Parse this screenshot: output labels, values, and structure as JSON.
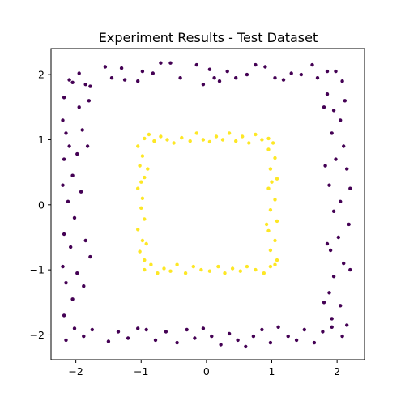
{
  "chart_data": {
    "type": "scatter",
    "title": "Experiment Results - Test Dataset",
    "xlabel": "",
    "ylabel": "",
    "xlim": [
      -2.38,
      2.42
    ],
    "ylim": [
      -2.38,
      2.4
    ],
    "xticks": [
      -2,
      -1,
      0,
      1,
      2
    ],
    "yticks": [
      -2,
      -1,
      0,
      1,
      2
    ],
    "xtick_labels": [
      "−2",
      "−1",
      "0",
      "1",
      "2"
    ],
    "ytick_labels": [
      "−2",
      "−1",
      "0",
      "1",
      "2"
    ],
    "grid": false,
    "series": [
      {
        "color": "#440154",
        "points": [
          [
            -2.1,
            1.92
          ],
          [
            -2.05,
            1.88
          ],
          [
            -1.95,
            2.02
          ],
          [
            -1.85,
            1.85
          ],
          [
            -1.78,
            1.82
          ],
          [
            -1.55,
            2.12
          ],
          [
            -1.45,
            1.95
          ],
          [
            -1.3,
            2.1
          ],
          [
            -1.25,
            1.92
          ],
          [
            -1.05,
            1.9
          ],
          [
            -0.98,
            2.05
          ],
          [
            -0.82,
            2.02
          ],
          [
            -0.7,
            2.18
          ],
          [
            -0.55,
            2.18
          ],
          [
            -0.4,
            1.95
          ],
          [
            -0.15,
            2.15
          ],
          [
            -0.05,
            1.85
          ],
          [
            0.05,
            2.08
          ],
          [
            0.12,
            1.95
          ],
          [
            0.2,
            1.9
          ],
          [
            0.32,
            2.05
          ],
          [
            0.45,
            1.95
          ],
          [
            0.62,
            2.0
          ],
          [
            0.75,
            2.15
          ],
          [
            0.9,
            2.12
          ],
          [
            1.05,
            1.95
          ],
          [
            1.18,
            1.92
          ],
          [
            1.3,
            2.02
          ],
          [
            1.45,
            2.0
          ],
          [
            1.62,
            2.15
          ],
          [
            1.7,
            1.95
          ],
          [
            1.85,
            2.05
          ],
          [
            1.98,
            2.05
          ],
          [
            2.08,
            1.9
          ],
          [
            -2.15,
            -2.08
          ],
          [
            -2.02,
            -1.9
          ],
          [
            -1.88,
            -2.02
          ],
          [
            -1.75,
            -1.92
          ],
          [
            -1.5,
            -2.1
          ],
          [
            -1.35,
            -1.95
          ],
          [
            -1.2,
            -2.05
          ],
          [
            -1.05,
            -1.9
          ],
          [
            -0.92,
            -1.92
          ],
          [
            -0.78,
            -2.08
          ],
          [
            -0.62,
            -1.95
          ],
          [
            -0.45,
            -2.12
          ],
          [
            -0.3,
            -1.92
          ],
          [
            -0.18,
            -2.05
          ],
          [
            -0.05,
            -1.9
          ],
          [
            0.08,
            -2.02
          ],
          [
            0.22,
            -2.15
          ],
          [
            0.35,
            -1.98
          ],
          [
            0.48,
            -2.08
          ],
          [
            0.6,
            -2.18
          ],
          [
            0.72,
            -2.02
          ],
          [
            0.85,
            -1.92
          ],
          [
            0.98,
            -2.12
          ],
          [
            1.1,
            -1.88
          ],
          [
            1.25,
            -2.02
          ],
          [
            1.38,
            -2.08
          ],
          [
            1.5,
            -1.92
          ],
          [
            1.65,
            -2.12
          ],
          [
            1.78,
            -1.95
          ],
          [
            1.92,
            -1.88
          ],
          [
            2.08,
            -2.02
          ],
          [
            -2.18,
            1.65
          ],
          [
            -2.2,
            1.3
          ],
          [
            -2.15,
            1.1
          ],
          [
            -2.1,
            0.9
          ],
          [
            -2.18,
            0.7
          ],
          [
            -2.05,
            0.45
          ],
          [
            -2.2,
            0.3
          ],
          [
            -2.12,
            0.05
          ],
          [
            -2.02,
            -0.2
          ],
          [
            -2.18,
            -0.45
          ],
          [
            -2.08,
            -0.65
          ],
          [
            -2.2,
            -0.95
          ],
          [
            -2.15,
            -1.2
          ],
          [
            -2.05,
            -1.45
          ],
          [
            -2.18,
            -1.7
          ],
          [
            -1.95,
            1.5
          ],
          [
            -1.9,
            1.15
          ],
          [
            -1.98,
            0.78
          ],
          [
            -1.92,
            0.2
          ],
          [
            -1.85,
            -0.55
          ],
          [
            -1.98,
            -1.05
          ],
          [
            -1.88,
            -1.25
          ],
          [
            -1.82,
            0.9
          ],
          [
            -1.8,
            1.6
          ],
          [
            -1.78,
            -0.8
          ],
          [
            1.85,
            1.7
          ],
          [
            1.95,
            1.45
          ],
          [
            2.05,
            1.3
          ],
          [
            1.92,
            1.1
          ],
          [
            2.1,
            0.9
          ],
          [
            1.98,
            0.7
          ],
          [
            2.15,
            0.55
          ],
          [
            1.88,
            0.3
          ],
          [
            2.05,
            0.05
          ],
          [
            1.95,
            -0.1
          ],
          [
            2.18,
            -0.3
          ],
          [
            2.02,
            -0.5
          ],
          [
            1.9,
            -0.7
          ],
          [
            2.1,
            -0.9
          ],
          [
            1.95,
            -1.1
          ],
          [
            2.2,
            -1.0
          ],
          [
            1.88,
            -1.35
          ],
          [
            2.05,
            -1.55
          ],
          [
            1.92,
            -1.75
          ],
          [
            2.15,
            -1.85
          ],
          [
            1.8,
            1.5
          ],
          [
            1.82,
            0.6
          ],
          [
            1.85,
            -0.6
          ],
          [
            1.8,
            -1.5
          ],
          [
            2.2,
            0.25
          ],
          [
            2.12,
            1.6
          ]
        ]
      },
      {
        "color": "#fde725",
        "points": [
          [
            -0.95,
            1.02
          ],
          [
            -0.88,
            1.08
          ],
          [
            -0.8,
            0.98
          ],
          [
            -0.7,
            1.05
          ],
          [
            -0.6,
            1.0
          ],
          [
            -0.5,
            0.95
          ],
          [
            -0.38,
            1.03
          ],
          [
            -0.25,
            0.98
          ],
          [
            -0.15,
            1.1
          ],
          [
            -0.05,
            1.0
          ],
          [
            0.05,
            0.97
          ],
          [
            0.15,
            1.05
          ],
          [
            0.25,
            1.0
          ],
          [
            0.35,
            1.1
          ],
          [
            0.45,
            0.98
          ],
          [
            0.55,
            1.05
          ],
          [
            0.65,
            0.95
          ],
          [
            0.75,
            1.08
          ],
          [
            0.85,
            1.0
          ],
          [
            0.95,
            1.02
          ],
          [
            1.02,
            0.95
          ],
          [
            -0.95,
            -1.0
          ],
          [
            -0.85,
            -0.92
          ],
          [
            -0.75,
            -1.05
          ],
          [
            -0.65,
            -0.98
          ],
          [
            -0.55,
            -1.02
          ],
          [
            -0.45,
            -0.92
          ],
          [
            -0.32,
            -1.05
          ],
          [
            -0.2,
            -0.95
          ],
          [
            -0.08,
            -1.0
          ],
          [
            0.05,
            -1.02
          ],
          [
            0.18,
            -0.95
          ],
          [
            0.28,
            -1.05
          ],
          [
            0.4,
            -0.98
          ],
          [
            0.52,
            -1.02
          ],
          [
            0.62,
            -0.95
          ],
          [
            0.75,
            -1.0
          ],
          [
            0.88,
            -1.05
          ],
          [
            0.98,
            -0.95
          ],
          [
            1.05,
            -0.92
          ],
          [
            -1.05,
            0.9
          ],
          [
            -0.98,
            0.75
          ],
          [
            -1.02,
            0.6
          ],
          [
            -0.95,
            0.42
          ],
          [
            -1.05,
            0.25
          ],
          [
            -0.98,
            0.1
          ],
          [
            -1.0,
            -0.05
          ],
          [
            -0.95,
            -0.22
          ],
          [
            -1.05,
            -0.38
          ],
          [
            -0.98,
            -0.55
          ],
          [
            -1.02,
            -0.72
          ],
          [
            -0.95,
            -0.85
          ],
          [
            -0.9,
            0.55
          ],
          [
            -0.92,
            -0.6
          ],
          [
            0.95,
            0.85
          ],
          [
            1.05,
            0.72
          ],
          [
            0.98,
            0.55
          ],
          [
            1.08,
            0.4
          ],
          [
            0.95,
            0.25
          ],
          [
            1.05,
            0.08
          ],
          [
            0.98,
            -0.08
          ],
          [
            1.08,
            -0.25
          ],
          [
            0.95,
            -0.4
          ],
          [
            1.05,
            -0.55
          ],
          [
            0.98,
            -0.7
          ],
          [
            1.08,
            -0.85
          ],
          [
            1.0,
            0.35
          ],
          [
            0.92,
            -0.3
          ],
          [
            -1.0,
            0.35
          ]
        ]
      }
    ]
  }
}
